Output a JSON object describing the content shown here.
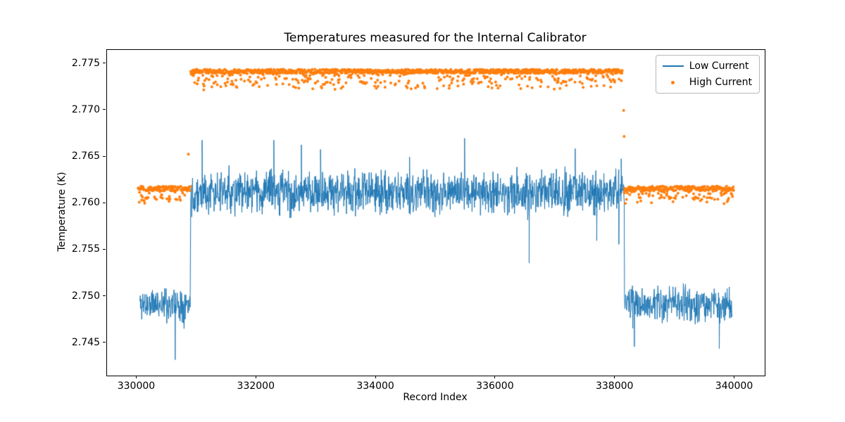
{
  "chart_data": {
    "type": "line+scatter",
    "title": "Temperatures measured for the Internal Calibrator",
    "xlabel": "Record Index",
    "ylabel": "Temperature (K)",
    "xlim": [
      329500,
      340500
    ],
    "ylim": [
      2.7415,
      2.7765
    ],
    "xticks": [
      330000,
      332000,
      334000,
      336000,
      338000,
      340000
    ],
    "xtick_labels": [
      "330000",
      "332000",
      "334000",
      "336000",
      "338000",
      "340000"
    ],
    "yticks": [
      2.745,
      2.75,
      2.755,
      2.76,
      2.765,
      2.77,
      2.775
    ],
    "ytick_labels": [
      "2.745",
      "2.750",
      "2.755",
      "2.760",
      "2.765",
      "2.770",
      "2.775"
    ],
    "grid": false,
    "legend": {
      "position": "upper right",
      "entries": [
        {
          "label": "Low Current",
          "color": "#1f77b4",
          "marker": "line"
        },
        {
          "label": "High Current",
          "color": "#ff7f0e",
          "marker": "dot"
        }
      ]
    },
    "series": [
      {
        "name": "Low Current",
        "color": "#1f77b4",
        "style": "line",
        "linewidth": 1,
        "segments": [
          {
            "x0": 330050,
            "x1": 330895,
            "mean": 2.7492,
            "amp": 0.0028,
            "step": 6,
            "seed": 11
          },
          {
            "x0": 330900,
            "x1": 338150,
            "mean": 2.7612,
            "amp": 0.0032,
            "step": 5,
            "seed": 22
          },
          {
            "x0": 338155,
            "x1": 339960,
            "mean": 2.7491,
            "amp": 0.0028,
            "step": 6,
            "seed": 33
          }
        ],
        "spikes": [
          {
            "x": 330640,
            "y": 2.7432
          },
          {
            "x": 331090,
            "y": 2.7668
          },
          {
            "x": 332290,
            "y": 2.7668
          },
          {
            "x": 332750,
            "y": 2.7663
          },
          {
            "x": 333070,
            "y": 2.7658
          },
          {
            "x": 334560,
            "y": 2.765
          },
          {
            "x": 335480,
            "y": 2.767
          },
          {
            "x": 336560,
            "y": 2.7536
          },
          {
            "x": 337330,
            "y": 2.7659
          },
          {
            "x": 337690,
            "y": 2.756
          },
          {
            "x": 338060,
            "y": 2.7556
          },
          {
            "x": 338100,
            "y": 2.7648
          },
          {
            "x": 338320,
            "y": 2.7446
          },
          {
            "x": 339740,
            "y": 2.7444
          }
        ]
      },
      {
        "name": "High Current",
        "color": "#ff7f0e",
        "style": "scatter",
        "radius": 2,
        "segments": [
          {
            "x0": 330020,
            "x1": 330895,
            "mean": 2.7616,
            "amp": 0.00025,
            "dip": 0.0014,
            "dipProb": 0.3,
            "step": 6,
            "seed": 44
          },
          {
            "x0": 330900,
            "x1": 338120,
            "mean": 2.7742,
            "amp": 0.00022,
            "dip": 0.0018,
            "dipProb": 0.27,
            "step": 6,
            "seed": 55
          },
          {
            "x0": 338150,
            "x1": 339980,
            "mean": 2.7616,
            "amp": 0.00025,
            "dip": 0.0014,
            "dipProb": 0.3,
            "step": 6,
            "seed": 66
          }
        ],
        "outliers": [
          {
            "x": 330860,
            "y": 2.7653
          },
          {
            "x": 338140,
            "y": 2.77
          },
          {
            "x": 338148,
            "y": 2.7672
          }
        ]
      }
    ]
  }
}
